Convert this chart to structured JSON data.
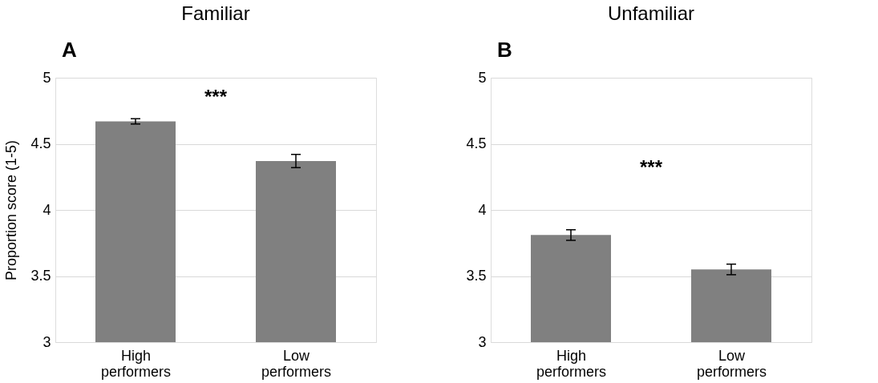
{
  "chart_data": [
    {
      "type": "bar",
      "title": "Familiar",
      "ylabel": "Proportion score (1-5)",
      "categories": [
        "High performers",
        "Low performers"
      ],
      "values": [
        4.67,
        4.37
      ],
      "errors": [
        0.02,
        0.05
      ],
      "color": "#808080",
      "ylim": [
        3,
        5
      ],
      "yticks": [
        3,
        3.5,
        4,
        4.5,
        5
      ],
      "grid": "y",
      "annotations": [
        "A",
        "***"
      ]
    },
    {
      "type": "bar",
      "title": "Unfamiliar",
      "categories": [
        "High performers",
        "Low performers"
      ],
      "values": [
        3.81,
        3.55
      ],
      "errors": [
        0.04,
        0.04
      ],
      "color": "#808080",
      "ylim": [
        3,
        5
      ],
      "yticks": [
        3,
        3.5,
        4,
        4.5,
        5
      ],
      "grid": "y",
      "annotations": [
        "B",
        "***"
      ]
    }
  ]
}
